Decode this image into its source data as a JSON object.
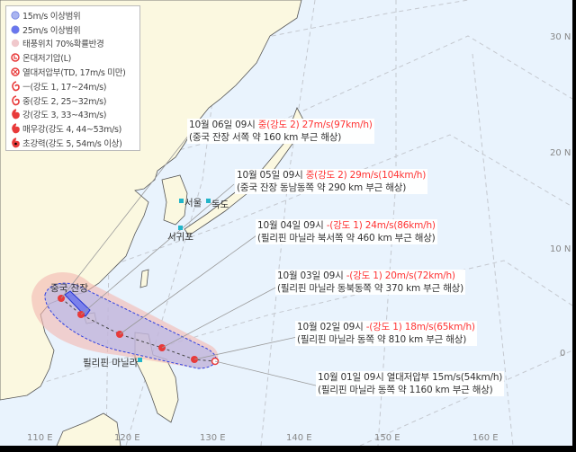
{
  "legend": {
    "items": [
      {
        "icon": "wind-15-radius-icon",
        "label": "15m/s 이상범위",
        "color": "#a9b4f0"
      },
      {
        "icon": "wind-25-radius-icon",
        "label": "25m/s 이상범위",
        "color": "#6a76f0"
      },
      {
        "icon": "probability-radius-icon",
        "label": "태풍위치 70%확률반경",
        "color": "#f0c8cc"
      },
      {
        "icon": "extratropical-low-icon",
        "label": "온대저기압(L)",
        "color": "#e83a3a"
      },
      {
        "icon": "tropical-depression-icon",
        "label": "열대저압부(TD, 17m/s 미만)",
        "color": "#e83a3a"
      },
      {
        "icon": "typhoon-grade-1-icon",
        "label": "ㅡ(강도 1, 17~24m/s)",
        "color": "#e83a3a"
      },
      {
        "icon": "typhoon-grade-2-icon",
        "label": "중(강도 2, 25~32m/s)",
        "color": "#e83a3a"
      },
      {
        "icon": "typhoon-grade-3-icon",
        "label": "강(강도 3, 33~43m/s)",
        "color": "#e83a3a"
      },
      {
        "icon": "typhoon-grade-4-icon",
        "label": "매우강(강도 4, 44~53m/s)",
        "color": "#e83a3a"
      },
      {
        "icon": "typhoon-grade-5-icon",
        "label": "초강력(강도 5, 54m/s 이상)",
        "color": "#e83a3a"
      }
    ]
  },
  "forecasts": [
    {
      "time": "10월 06일 09시",
      "intensity": "중(강도 2) 27m/s(97km/h)",
      "location": "(중국 잔장 서쪽 약 160 km 부근 해상)"
    },
    {
      "time": "10월 05일 09시",
      "intensity": "중(강도 2) 29m/s(104km/h)",
      "location": "(중국 잔장 동남동쪽 약 290 km 부근 해상)"
    },
    {
      "time": "10월 04일 09시",
      "intensity": "-(강도 1) 24m/s(86km/h)",
      "location": "(필리핀 마닐라 북서쪽 약 460 km 부근 해상)"
    },
    {
      "time": "10월 03일 09시",
      "intensity": "-(강도 1) 20m/s(72km/h)",
      "location": "(필리핀 마닐라 동북동쪽 약 370 km 부근 해상)"
    },
    {
      "time": "10월 02일 09시",
      "intensity": "-(강도 1) 18m/s(65km/h)",
      "location": "(필리핀 마닐라 동쪽 약 810 km 부근 해상)"
    },
    {
      "time": "10월 01일 09시",
      "intensity": "열대저압부 15m/s(54km/h)",
      "location": "(필리핀 마닐라 동쪽 약 1160 km 부근 해상)"
    }
  ],
  "places": {
    "seoul": "서울",
    "dokdo": "독도",
    "seogwipo": "서귀포",
    "zhanjiang": "중국 잔장",
    "manila": "필리핀 마닐라"
  },
  "axes": {
    "lon": [
      "110 E",
      "120 E",
      "130 E",
      "140 E",
      "150 E",
      "160 E"
    ],
    "lat": [
      "30 N",
      "20 N",
      "10 N",
      "0"
    ]
  },
  "colors": {
    "ocean": "#e9f3fd",
    "land": "#fbf8e0",
    "track_marker": "#e83a3a",
    "wind15": "#a9b4f0",
    "wind25": "#5a66f0",
    "prob": "#f4b8b0"
  }
}
